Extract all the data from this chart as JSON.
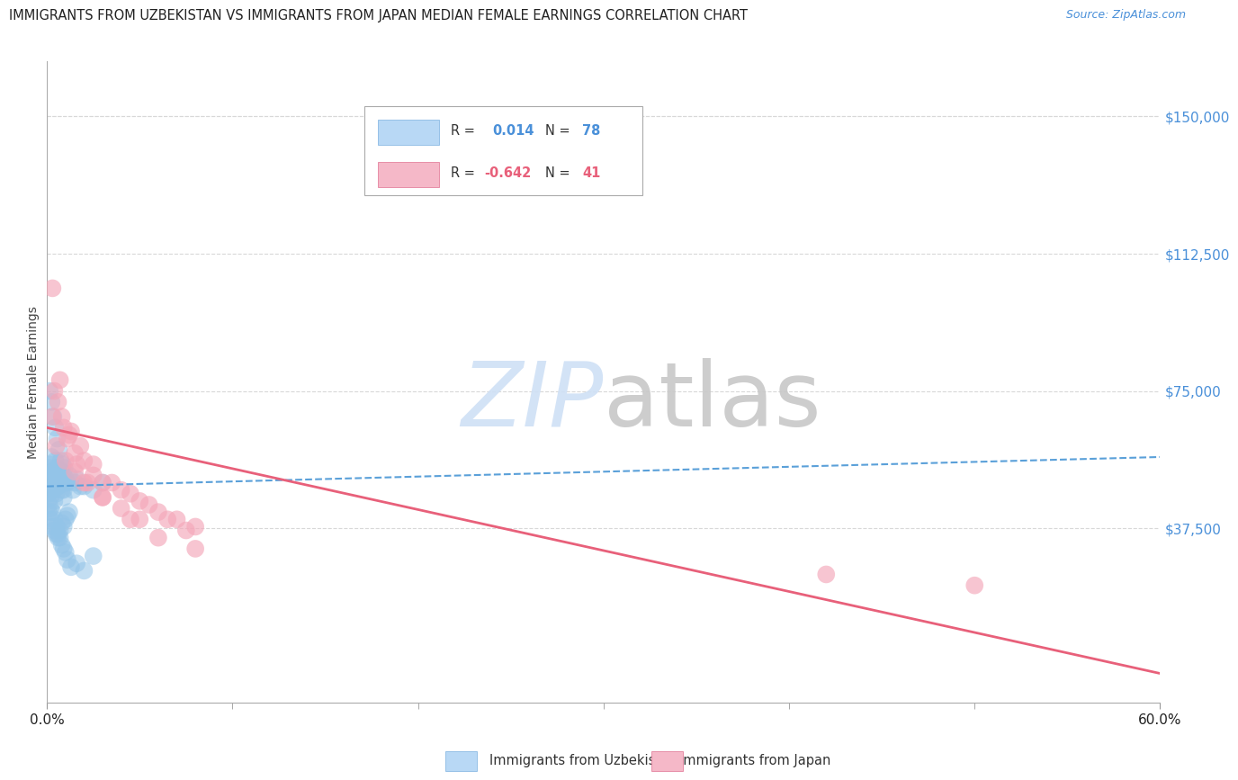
{
  "title": "IMMIGRANTS FROM UZBEKISTAN VS IMMIGRANTS FROM JAPAN MEDIAN FEMALE EARNINGS CORRELATION CHART",
  "source": "Source: ZipAtlas.com",
  "ylabel": "Median Female Earnings",
  "ytick_labels_right": [
    "$150,000",
    "$112,500",
    "$75,000",
    "$37,500"
  ],
  "yticks": [
    150000,
    112500,
    75000,
    37500
  ],
  "ylim": [
    -10000,
    165000
  ],
  "xlim": [
    0,
    60
  ],
  "uzbekistan_color": "#93c4e8",
  "japan_color": "#f4a7b9",
  "uzbekistan_line_color": "#5aA0d9",
  "japan_line_color": "#e8607a",
  "background_color": "#ffffff",
  "grid_color": "#d8d8d8",
  "uzbekistan_R": 0.014,
  "uzbekistan_N": 78,
  "japan_R": -0.642,
  "japan_N": 41,
  "uzb_line_y0": 49000,
  "uzb_line_y60": 57000,
  "jp_line_y0": 65000,
  "jp_line_y60": -2000,
  "uzbekistan_x": [
    0.1,
    0.15,
    0.2,
    0.25,
    0.3,
    0.35,
    0.4,
    0.45,
    0.5,
    0.55,
    0.6,
    0.7,
    0.8,
    0.9,
    1.0,
    1.1,
    1.2,
    1.4,
    1.6,
    1.8,
    0.1,
    0.2,
    0.3,
    0.4,
    0.5,
    0.6,
    0.7,
    0.8,
    0.9,
    1.0,
    0.15,
    0.25,
    0.35,
    0.45,
    0.55,
    0.65,
    0.75,
    0.85,
    0.1,
    0.2,
    0.3,
    0.4,
    0.5,
    0.6,
    0.7,
    0.8,
    0.9,
    1.0,
    1.1,
    1.2,
    0.15,
    0.25,
    0.35,
    0.45,
    0.55,
    0.65,
    0.75,
    0.85,
    0.95,
    1.5,
    2.0,
    2.5,
    3.0,
    0.1,
    0.2,
    0.3,
    0.4,
    0.5,
    0.6,
    0.7,
    0.8,
    0.9,
    1.0,
    1.1,
    1.3,
    1.6,
    2.0,
    2.5
  ],
  "uzbekistan_y": [
    52000,
    54000,
    50000,
    53000,
    48000,
    51000,
    49000,
    52000,
    50000,
    51000,
    49000,
    52000,
    50000,
    48000,
    51000,
    50000,
    52000,
    48000,
    51000,
    49000,
    47000,
    46000,
    48000,
    45000,
    47000,
    49000,
    51000,
    48000,
    46000,
    50000,
    75000,
    72000,
    68000,
    65000,
    62000,
    59000,
    56000,
    53000,
    42000,
    40000,
    38000,
    37000,
    36000,
    35000,
    37000,
    39000,
    38000,
    40000,
    41000,
    42000,
    55000,
    57000,
    53000,
    56000,
    54000,
    52000,
    53000,
    55000,
    54000,
    50000,
    49000,
    48000,
    50000,
    44000,
    43000,
    42000,
    40000,
    38000,
    36000,
    35000,
    33000,
    32000,
    31000,
    29000,
    27000,
    28000,
    26000,
    30000
  ],
  "japan_x": [
    0.3,
    0.6,
    0.9,
    1.2,
    1.5,
    2.0,
    2.5,
    3.0,
    4.0,
    5.0,
    6.0,
    7.0,
    8.0,
    0.4,
    0.8,
    1.3,
    1.8,
    2.5,
    3.5,
    4.5,
    5.5,
    6.5,
    7.5,
    0.5,
    1.0,
    1.5,
    2.0,
    3.0,
    4.0,
    5.0,
    0.3,
    0.7,
    1.1,
    1.6,
    2.2,
    3.0,
    4.5,
    6.0,
    8.0,
    42.0,
    50.0
  ],
  "japan_y": [
    68000,
    72000,
    65000,
    63000,
    58000,
    56000,
    52000,
    50000,
    48000,
    45000,
    42000,
    40000,
    38000,
    75000,
    68000,
    64000,
    60000,
    55000,
    50000,
    47000,
    44000,
    40000,
    37000,
    60000,
    56000,
    53000,
    50000,
    46000,
    43000,
    40000,
    103000,
    78000,
    62000,
    55000,
    50000,
    46000,
    40000,
    35000,
    32000,
    25000,
    22000
  ]
}
